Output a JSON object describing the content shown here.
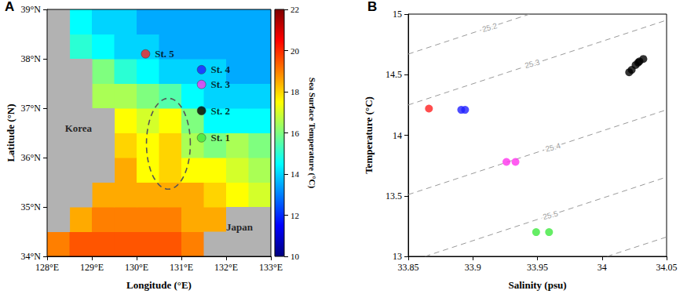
{
  "chart_data": [
    {
      "panel": "A",
      "type": "heatmap",
      "grid": false,
      "xlabel": "Longitude (°E)",
      "ylabel": "Latitude (°N)",
      "xlim": [
        128,
        133
      ],
      "xticks": [
        {
          "value": 128,
          "label": "128°E"
        },
        {
          "value": 129,
          "label": "129°E"
        },
        {
          "value": 130,
          "label": "130°E"
        },
        {
          "value": 131,
          "label": "131°E"
        },
        {
          "value": 132,
          "label": "132°E"
        },
        {
          "value": 133,
          "label": "133°E"
        }
      ],
      "ylim": [
        34,
        39
      ],
      "yticks": [
        {
          "value": 34,
          "label": "34°N"
        },
        {
          "value": 35,
          "label": "35°N"
        },
        {
          "value": 36,
          "label": "36°N"
        },
        {
          "value": 37,
          "label": "37°N"
        },
        {
          "value": 38,
          "label": "38°N"
        },
        {
          "value": 39,
          "label": "39°N"
        }
      ],
      "sst": {
        "lon": [
          128.25,
          128.75,
          129.25,
          129.75,
          130.25,
          130.75,
          131.25,
          131.75,
          132.25,
          132.75
        ],
        "lat": [
          34.25,
          34.75,
          35.25,
          35.75,
          36.25,
          36.75,
          37.25,
          37.75,
          38.25,
          38.75
        ],
        "values": [
          [
            19,
            19.5,
            19.5,
            19.5,
            19.5,
            19.5,
            19,
            null,
            null,
            null
          ],
          [
            null,
            18.5,
            19,
            19,
            19,
            19,
            18.5,
            18.5,
            null,
            null
          ],
          [
            null,
            null,
            18.5,
            18.5,
            18.5,
            18.5,
            18.5,
            18,
            17.5,
            17
          ],
          [
            null,
            null,
            null,
            18.5,
            17.5,
            18,
            17.5,
            17.5,
            17,
            16.5
          ],
          [
            null,
            null,
            null,
            18,
            17.5,
            18,
            16.5,
            16,
            16.5,
            16
          ],
          [
            null,
            null,
            null,
            17.5,
            17,
            17.5,
            16,
            14.5,
            14.5,
            14.5
          ],
          [
            null,
            null,
            16.5,
            16.5,
            16,
            15.5,
            14.5,
            14,
            14,
            14
          ],
          [
            null,
            null,
            16,
            15,
            14.5,
            14,
            14,
            14,
            13.5,
            13.5
          ],
          [
            null,
            15,
            14.5,
            14,
            14,
            13.5,
            13.5,
            13.5,
            13.5,
            13.5
          ],
          [
            null,
            14.5,
            14,
            14,
            13.5,
            13.5,
            13.5,
            13.5,
            13.5,
            13.5
          ]
        ]
      },
      "colorbar": {
        "label": "Sea Surface Temperature (°C)",
        "range": [
          10,
          22
        ],
        "ticks": [
          10,
          12,
          14,
          16,
          18,
          20,
          22
        ]
      },
      "stations": [
        {
          "label": "St. 1",
          "lon": 131.45,
          "lat": 36.4,
          "color": "#3ee83e"
        },
        {
          "label": "St. 2",
          "lon": 131.45,
          "lat": 36.95,
          "color": "#000000"
        },
        {
          "label": "St. 3",
          "lon": 131.45,
          "lat": 37.48,
          "color": "#ff33ee"
        },
        {
          "label": "St. 4",
          "lon": 131.45,
          "lat": 37.78,
          "color": "#2020ff"
        },
        {
          "label": "St. 5",
          "lon": 130.2,
          "lat": 38.1,
          "color": "#ff2020"
        }
      ],
      "annotations": [
        {
          "text": "Korea",
          "lon": 128.7,
          "lat": 36.6
        },
        {
          "text": "Japan",
          "lon": 132.3,
          "lat": 34.6
        }
      ],
      "ellipse": {
        "center": [
          130.71,
          36.28
        ],
        "radius": [
          0.49,
          0.92
        ]
      }
    },
    {
      "panel": "B",
      "type": "scatter",
      "grid": false,
      "marker": "circle",
      "xlabel": "Salinity (psu)",
      "ylabel": "Temperature (°C)",
      "xlim": [
        33.85,
        34.05
      ],
      "xticks": [
        33.85,
        33.9,
        33.95,
        34,
        34.05
      ],
      "ylim": [
        13,
        15
      ],
      "yticks": [
        13,
        13.5,
        14,
        14.5,
        15
      ],
      "series": [
        {
          "color": "#3ee83e",
          "x": [
            33.949,
            33.959
          ],
          "values": [
            13.2,
            13.2
          ]
        },
        {
          "color": "#000000",
          "x": [
            34.021,
            34.023,
            34.026,
            34.028,
            34.029,
            34.032
          ],
          "values": [
            14.52,
            14.54,
            14.58,
            14.6,
            14.61,
            14.63
          ]
        },
        {
          "color": "#ff33ee",
          "x": [
            33.926,
            33.933
          ],
          "values": [
            13.78,
            13.78
          ]
        },
        {
          "color": "#2020ff",
          "x": [
            33.891,
            33.894
          ],
          "values": [
            14.21,
            14.21
          ]
        },
        {
          "color": "#ff2020",
          "x": [
            33.866
          ],
          "values": [
            14.22
          ]
        }
      ],
      "isopycnals": [
        {
          "sigma": 25.2,
          "x": [
            33.85,
            33.944
          ],
          "y": [
            14.67,
            15
          ],
          "label_at": [
            33.913,
            14.89
          ]
        },
        {
          "sigma": 25.3,
          "x": [
            33.85,
            34.05
          ],
          "y": [
            14.25,
            14.95
          ],
          "label_at": [
            33.946,
            14.59
          ]
        },
        {
          "sigma": 25.4,
          "x": [
            33.85,
            34.05
          ],
          "y": [
            13.51,
            14.21
          ],
          "label_at": [
            33.962,
            13.9
          ]
        },
        {
          "sigma": 25.5,
          "x": [
            33.863,
            34.05
          ],
          "y": [
            13,
            13.655
          ],
          "label_at": [
            33.96,
            13.34
          ]
        },
        {
          "x": [
            34.004,
            34.05
          ],
          "y": [
            13,
            13.16
          ]
        }
      ]
    }
  ]
}
